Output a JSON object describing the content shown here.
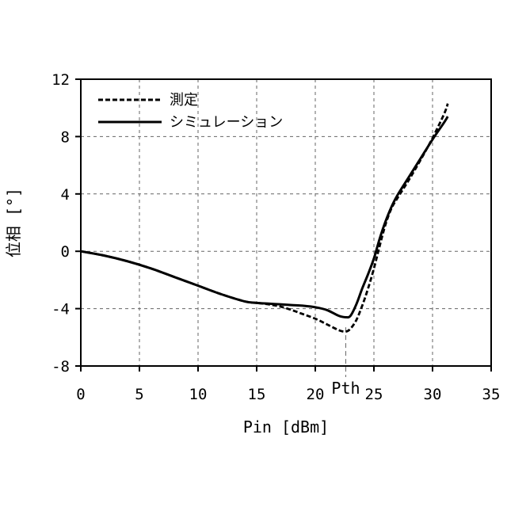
{
  "chart_data": {
    "type": "line",
    "xlabel": "Pin [dBm]",
    "ylabel": "位相 [°]",
    "xlim": [
      0,
      35
    ],
    "ylim": [
      -8,
      12
    ],
    "xticks": [
      0,
      5,
      10,
      15,
      20,
      25,
      30,
      35
    ],
    "yticks": [
      -8,
      -4,
      0,
      4,
      8,
      12
    ],
    "grid": true,
    "legend_position": "top-left",
    "annotation": {
      "label": "Pth",
      "x": 22.6
    },
    "series": [
      {
        "name": "測定",
        "style": "dashed",
        "color": "#000000",
        "x": [
          0,
          2,
          4,
          6,
          8,
          10,
          12,
          14,
          15,
          16,
          17,
          18,
          19,
          20,
          21,
          22,
          22.6,
          23,
          23.5,
          24,
          24.5,
          25,
          25.5,
          26,
          26.5,
          27,
          28,
          29,
          30,
          31,
          31.3
        ],
        "y": [
          0,
          -0.3,
          -0.7,
          -1.2,
          -1.8,
          -2.4,
          -3.0,
          -3.5,
          -3.6,
          -3.7,
          -3.85,
          -4.1,
          -4.4,
          -4.7,
          -5.1,
          -5.5,
          -5.6,
          -5.4,
          -4.8,
          -3.8,
          -2.6,
          -1.2,
          0.4,
          1.9,
          3.0,
          3.7,
          5.0,
          6.4,
          7.9,
          9.6,
          10.3
        ]
      },
      {
        "name": "シミュレーション",
        "style": "solid",
        "color": "#000000",
        "x": [
          0,
          2,
          4,
          6,
          8,
          10,
          12,
          14,
          15,
          16,
          17,
          18,
          19,
          20,
          21,
          22,
          22.6,
          23,
          23.5,
          24,
          24.5,
          25,
          25.5,
          26,
          26.5,
          27,
          28,
          29,
          30,
          31,
          31.3
        ],
        "y": [
          0,
          -0.3,
          -0.7,
          -1.2,
          -1.8,
          -2.4,
          -3.0,
          -3.5,
          -3.6,
          -3.65,
          -3.7,
          -3.75,
          -3.8,
          -3.9,
          -4.1,
          -4.5,
          -4.6,
          -4.5,
          -3.7,
          -2.6,
          -1.6,
          -0.5,
          0.9,
          2.1,
          3.1,
          3.9,
          5.2,
          6.5,
          7.8,
          9.0,
          9.4
        ]
      }
    ]
  }
}
